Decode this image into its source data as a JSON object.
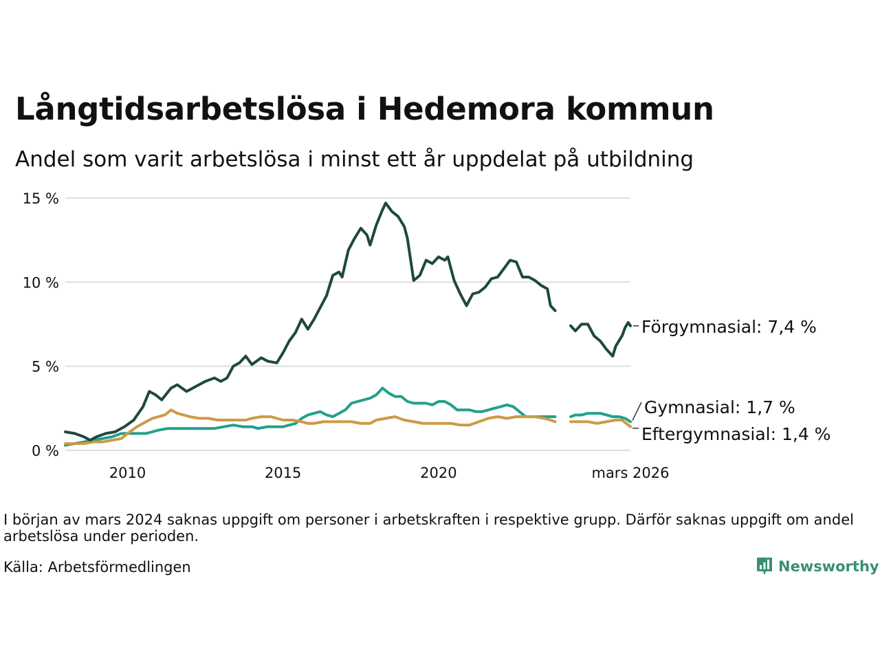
{
  "header": {
    "title": "Långtidsarbetslösa i Hedemora kommun",
    "subtitle": "Andel som varit arbetslösa i minst ett år uppdelat på utbildning"
  },
  "footer": {
    "note": "I början av mars 2024 saknas uppgift om personer i arbetskraften i respektive grupp. Därför saknas uppgift om andel arbetslösa under perioden.",
    "source": "Källa: Arbetsförmedlingen",
    "brand": "Newsworthy",
    "brand_color": "#3c8f72"
  },
  "chart_data": {
    "type": "line",
    "title": "Långtidsarbetslösa i Hedemora kommun",
    "subtitle": "Andel som varit arbetslösa i minst ett år uppdelat på utbildning",
    "xlabel": "",
    "ylabel": "",
    "x_range": [
      2008.0,
      2026.17
    ],
    "ylim": [
      0,
      15
    ],
    "y_ticks": [
      0,
      5,
      10,
      15
    ],
    "y_tick_labels": [
      "0 %",
      "5 %",
      "10 %",
      "15 %"
    ],
    "x_ticks": [
      2010,
      2015,
      2020,
      2026.17
    ],
    "x_tick_labels": [
      "2010",
      "2015",
      "2020",
      "mars 2026"
    ],
    "grid": "horizontal",
    "gap": [
      2023.75,
      2024.25
    ],
    "series": [
      {
        "name": "Förgymnasial",
        "label": "Förgymnasial: 7,4 %",
        "color": "#1e4840",
        "points": [
          [
            2008.0,
            1.1
          ],
          [
            2008.3,
            1.0
          ],
          [
            2008.6,
            0.8
          ],
          [
            2008.8,
            0.6
          ],
          [
            2009.0,
            0.8
          ],
          [
            2009.3,
            1.0
          ],
          [
            2009.6,
            1.1
          ],
          [
            2009.9,
            1.4
          ],
          [
            2010.2,
            1.8
          ],
          [
            2010.5,
            2.6
          ],
          [
            2010.7,
            3.5
          ],
          [
            2010.9,
            3.3
          ],
          [
            2011.1,
            3.0
          ],
          [
            2011.4,
            3.7
          ],
          [
            2011.6,
            3.9
          ],
          [
            2011.9,
            3.5
          ],
          [
            2012.2,
            3.8
          ],
          [
            2012.5,
            4.1
          ],
          [
            2012.8,
            4.3
          ],
          [
            2013.0,
            4.1
          ],
          [
            2013.2,
            4.3
          ],
          [
            2013.4,
            5.0
          ],
          [
            2013.6,
            5.2
          ],
          [
            2013.8,
            5.6
          ],
          [
            2014.0,
            5.1
          ],
          [
            2014.3,
            5.5
          ],
          [
            2014.5,
            5.3
          ],
          [
            2014.8,
            5.2
          ],
          [
            2015.0,
            5.8
          ],
          [
            2015.2,
            6.5
          ],
          [
            2015.4,
            7.0
          ],
          [
            2015.6,
            7.8
          ],
          [
            2015.8,
            7.2
          ],
          [
            2016.0,
            7.8
          ],
          [
            2016.2,
            8.5
          ],
          [
            2016.4,
            9.2
          ],
          [
            2016.6,
            10.4
          ],
          [
            2016.8,
            10.6
          ],
          [
            2016.9,
            10.3
          ],
          [
            2017.1,
            11.9
          ],
          [
            2017.3,
            12.6
          ],
          [
            2017.5,
            13.2
          ],
          [
            2017.7,
            12.8
          ],
          [
            2017.8,
            12.2
          ],
          [
            2018.0,
            13.4
          ],
          [
            2018.2,
            14.3
          ],
          [
            2018.3,
            14.7
          ],
          [
            2018.5,
            14.2
          ],
          [
            2018.7,
            13.9
          ],
          [
            2018.9,
            13.3
          ],
          [
            2019.0,
            12.6
          ],
          [
            2019.2,
            10.1
          ],
          [
            2019.4,
            10.4
          ],
          [
            2019.6,
            11.3
          ],
          [
            2019.8,
            11.1
          ],
          [
            2020.0,
            11.5
          ],
          [
            2020.2,
            11.3
          ],
          [
            2020.3,
            11.5
          ],
          [
            2020.5,
            10.1
          ],
          [
            2020.7,
            9.3
          ],
          [
            2020.9,
            8.6
          ],
          [
            2021.1,
            9.3
          ],
          [
            2021.3,
            9.4
          ],
          [
            2021.5,
            9.7
          ],
          [
            2021.7,
            10.2
          ],
          [
            2021.9,
            10.3
          ],
          [
            2022.1,
            10.8
          ],
          [
            2022.3,
            11.3
          ],
          [
            2022.5,
            11.2
          ],
          [
            2022.7,
            10.3
          ],
          [
            2022.9,
            10.3
          ],
          [
            2023.1,
            10.1
          ],
          [
            2023.3,
            9.8
          ],
          [
            2023.5,
            9.6
          ],
          [
            2023.6,
            8.6
          ],
          [
            2023.75,
            8.3
          ],
          [
            null,
            null
          ],
          [
            2024.25,
            7.4
          ],
          [
            2024.4,
            7.1
          ],
          [
            2024.6,
            7.5
          ],
          [
            2024.8,
            7.5
          ],
          [
            2025.0,
            6.8
          ],
          [
            2025.2,
            6.5
          ],
          [
            2025.4,
            6.0
          ],
          [
            2025.6,
            5.6
          ],
          [
            2025.7,
            6.2
          ],
          [
            2025.9,
            6.8
          ],
          [
            2026.0,
            7.3
          ],
          [
            2026.1,
            7.6
          ],
          [
            2026.17,
            7.4
          ]
        ]
      },
      {
        "name": "Gymnasial",
        "label": "Gymnasial: 1,7 %",
        "color": "#22a08a",
        "points": [
          [
            2008.0,
            0.3
          ],
          [
            2008.3,
            0.4
          ],
          [
            2008.6,
            0.5
          ],
          [
            2008.9,
            0.6
          ],
          [
            2009.2,
            0.7
          ],
          [
            2009.5,
            0.8
          ],
          [
            2009.8,
            1.0
          ],
          [
            2010.0,
            1.0
          ],
          [
            2010.3,
            1.0
          ],
          [
            2010.6,
            1.0
          ],
          [
            2010.8,
            1.1
          ],
          [
            2011.0,
            1.2
          ],
          [
            2011.3,
            1.3
          ],
          [
            2011.6,
            1.3
          ],
          [
            2011.9,
            1.3
          ],
          [
            2012.2,
            1.3
          ],
          [
            2012.5,
            1.3
          ],
          [
            2012.8,
            1.3
          ],
          [
            2013.1,
            1.4
          ],
          [
            2013.4,
            1.5
          ],
          [
            2013.7,
            1.4
          ],
          [
            2014.0,
            1.4
          ],
          [
            2014.2,
            1.3
          ],
          [
            2014.5,
            1.4
          ],
          [
            2014.8,
            1.4
          ],
          [
            2015.0,
            1.4
          ],
          [
            2015.2,
            1.5
          ],
          [
            2015.4,
            1.6
          ],
          [
            2015.6,
            1.9
          ],
          [
            2015.8,
            2.1
          ],
          [
            2016.0,
            2.2
          ],
          [
            2016.2,
            2.3
          ],
          [
            2016.4,
            2.1
          ],
          [
            2016.6,
            2.0
          ],
          [
            2016.8,
            2.2
          ],
          [
            2017.0,
            2.4
          ],
          [
            2017.2,
            2.8
          ],
          [
            2017.4,
            2.9
          ],
          [
            2017.6,
            3.0
          ],
          [
            2017.8,
            3.1
          ],
          [
            2018.0,
            3.3
          ],
          [
            2018.2,
            3.7
          ],
          [
            2018.4,
            3.4
          ],
          [
            2018.6,
            3.2
          ],
          [
            2018.8,
            3.2
          ],
          [
            2019.0,
            2.9
          ],
          [
            2019.2,
            2.8
          ],
          [
            2019.4,
            2.8
          ],
          [
            2019.6,
            2.8
          ],
          [
            2019.8,
            2.7
          ],
          [
            2020.0,
            2.9
          ],
          [
            2020.2,
            2.9
          ],
          [
            2020.4,
            2.7
          ],
          [
            2020.6,
            2.4
          ],
          [
            2020.8,
            2.4
          ],
          [
            2021.0,
            2.4
          ],
          [
            2021.2,
            2.3
          ],
          [
            2021.4,
            2.3
          ],
          [
            2021.6,
            2.4
          ],
          [
            2021.8,
            2.5
          ],
          [
            2022.0,
            2.6
          ],
          [
            2022.2,
            2.7
          ],
          [
            2022.4,
            2.6
          ],
          [
            2022.6,
            2.3
          ],
          [
            2022.8,
            2.0
          ],
          [
            2023.0,
            2.0
          ],
          [
            2023.2,
            2.0
          ],
          [
            2023.4,
            2.0
          ],
          [
            2023.6,
            2.0
          ],
          [
            2023.75,
            2.0
          ],
          [
            null,
            null
          ],
          [
            2024.25,
            2.0
          ],
          [
            2024.4,
            2.1
          ],
          [
            2024.6,
            2.1
          ],
          [
            2024.8,
            2.2
          ],
          [
            2025.0,
            2.2
          ],
          [
            2025.2,
            2.2
          ],
          [
            2025.4,
            2.1
          ],
          [
            2025.6,
            2.0
          ],
          [
            2025.8,
            2.0
          ],
          [
            2026.0,
            1.9
          ],
          [
            2026.17,
            1.7
          ]
        ]
      },
      {
        "name": "Eftergymnasial",
        "label": "Eftergymnasial: 1,4 %",
        "color": "#cc9a45",
        "points": [
          [
            2008.0,
            0.4
          ],
          [
            2008.3,
            0.4
          ],
          [
            2008.6,
            0.4
          ],
          [
            2008.9,
            0.5
          ],
          [
            2009.2,
            0.5
          ],
          [
            2009.5,
            0.6
          ],
          [
            2009.8,
            0.7
          ],
          [
            2010.0,
            1.0
          ],
          [
            2010.3,
            1.4
          ],
          [
            2010.6,
            1.7
          ],
          [
            2010.8,
            1.9
          ],
          [
            2011.0,
            2.0
          ],
          [
            2011.2,
            2.1
          ],
          [
            2011.4,
            2.4
          ],
          [
            2011.6,
            2.2
          ],
          [
            2011.8,
            2.1
          ],
          [
            2012.0,
            2.0
          ],
          [
            2012.3,
            1.9
          ],
          [
            2012.6,
            1.9
          ],
          [
            2012.9,
            1.8
          ],
          [
            2013.2,
            1.8
          ],
          [
            2013.5,
            1.8
          ],
          [
            2013.8,
            1.8
          ],
          [
            2014.0,
            1.9
          ],
          [
            2014.3,
            2.0
          ],
          [
            2014.6,
            2.0
          ],
          [
            2014.8,
            1.9
          ],
          [
            2015.0,
            1.8
          ],
          [
            2015.3,
            1.8
          ],
          [
            2015.6,
            1.7
          ],
          [
            2015.8,
            1.6
          ],
          [
            2016.0,
            1.6
          ],
          [
            2016.3,
            1.7
          ],
          [
            2016.6,
            1.7
          ],
          [
            2016.9,
            1.7
          ],
          [
            2017.2,
            1.7
          ],
          [
            2017.5,
            1.6
          ],
          [
            2017.8,
            1.6
          ],
          [
            2018.0,
            1.8
          ],
          [
            2018.3,
            1.9
          ],
          [
            2018.6,
            2.0
          ],
          [
            2018.9,
            1.8
          ],
          [
            2019.2,
            1.7
          ],
          [
            2019.5,
            1.6
          ],
          [
            2019.8,
            1.6
          ],
          [
            2020.1,
            1.6
          ],
          [
            2020.4,
            1.6
          ],
          [
            2020.7,
            1.5
          ],
          [
            2021.0,
            1.5
          ],
          [
            2021.3,
            1.7
          ],
          [
            2021.6,
            1.9
          ],
          [
            2021.9,
            2.0
          ],
          [
            2022.2,
            1.9
          ],
          [
            2022.5,
            2.0
          ],
          [
            2022.8,
            2.0
          ],
          [
            2023.1,
            2.0
          ],
          [
            2023.4,
            1.9
          ],
          [
            2023.6,
            1.8
          ],
          [
            2023.75,
            1.7
          ],
          [
            null,
            null
          ],
          [
            2024.25,
            1.7
          ],
          [
            2024.5,
            1.7
          ],
          [
            2024.8,
            1.7
          ],
          [
            2025.1,
            1.6
          ],
          [
            2025.4,
            1.7
          ],
          [
            2025.7,
            1.8
          ],
          [
            2025.9,
            1.8
          ],
          [
            2026.17,
            1.4
          ]
        ]
      }
    ]
  }
}
